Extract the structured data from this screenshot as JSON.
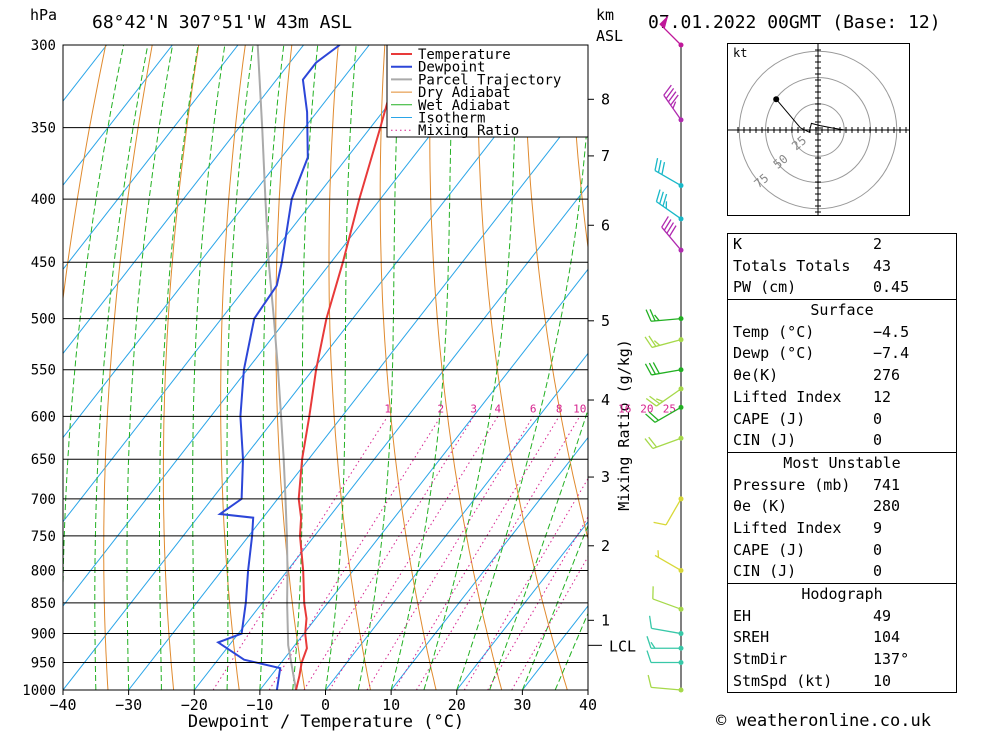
{
  "header": {
    "pressure_unit": "hPa",
    "location": "68°42'N 307°51'W 43m ASL",
    "km_unit": "km",
    "asl_unit": "ASL",
    "datetime": "07.01.2022 00GMT (Base: 12)"
  },
  "chart_data": {
    "type": "skew-t",
    "xlabel": "Dewpoint / Temperature (°C)",
    "x_ticks": [
      "−40",
      "−30",
      "−20",
      "−10",
      "0",
      "10",
      "20",
      "30",
      "40"
    ],
    "x_tick_values": [
      -40,
      -30,
      -20,
      -10,
      0,
      10,
      20,
      30,
      40
    ],
    "pressure_levels": [
      300,
      350,
      400,
      450,
      500,
      550,
      600,
      650,
      700,
      750,
      800,
      850,
      900,
      950,
      1000
    ],
    "height_km_ticks": [
      "8",
      "7",
      "6",
      "5",
      "4",
      "3",
      "2",
      "1"
    ],
    "height_km_pressures": [
      332,
      369,
      420,
      502,
      582,
      672,
      764,
      878
    ],
    "lcl_label": "LCL",
    "lcl_pressure": 920,
    "mixing_ratio_label": "Mixing Ratio (g/kg)",
    "mixing_ratio_values": [
      "1",
      "2",
      "3",
      "4",
      "6",
      "8",
      "10",
      "16",
      "20",
      "25"
    ],
    "legend": [
      "Temperature",
      "Dewpoint",
      "Parcel Trajectory",
      "Dry Adiabat",
      "Wet Adiabat",
      "Isotherm",
      "Mixing Ratio"
    ],
    "colors": {
      "temperature": "#e83a3a",
      "dewpoint": "#2c46d8",
      "parcel": "#aaaaaa",
      "dry_adiabat": "#e08a2e",
      "wet_adiabat": "#22b022",
      "isotherm": "#2aa5e8",
      "mixing_ratio": "#d6228e"
    },
    "temperature_profile": [
      {
        "p": 1000,
        "t": -4.5
      },
      {
        "p": 975,
        "t": -5.6
      },
      {
        "p": 950,
        "t": -6.9
      },
      {
        "p": 925,
        "t": -7.8
      },
      {
        "p": 900,
        "t": -9.8
      },
      {
        "p": 875,
        "t": -11.4
      },
      {
        "p": 850,
        "t": -13.6
      },
      {
        "p": 800,
        "t": -17.6
      },
      {
        "p": 750,
        "t": -22.2
      },
      {
        "p": 725,
        "t": -24.2
      },
      {
        "p": 700,
        "t": -26.8
      },
      {
        "p": 650,
        "t": -31.0
      },
      {
        "p": 600,
        "t": -35.0
      },
      {
        "p": 550,
        "t": -39.5
      },
      {
        "p": 500,
        "t": -44.0
      },
      {
        "p": 450,
        "t": -48.2
      },
      {
        "p": 400,
        "t": -53.2
      },
      {
        "p": 350,
        "t": -58.5
      },
      {
        "p": 300,
        "t": -64.8
      }
    ],
    "dewpoint_profile": [
      {
        "p": 1000,
        "t": -7.4
      },
      {
        "p": 960,
        "t": -9.5
      },
      {
        "p": 945,
        "t": -16.0
      },
      {
        "p": 915,
        "t": -22.0
      },
      {
        "p": 900,
        "t": -19.5
      },
      {
        "p": 850,
        "t": -22.5
      },
      {
        "p": 800,
        "t": -26.0
      },
      {
        "p": 750,
        "t": -29.5
      },
      {
        "p": 725,
        "t": -31.5
      },
      {
        "p": 720,
        "t": -37.0
      },
      {
        "p": 700,
        "t": -35.5
      },
      {
        "p": 650,
        "t": -40.0
      },
      {
        "p": 600,
        "t": -45.5
      },
      {
        "p": 550,
        "t": -50.5
      },
      {
        "p": 500,
        "t": -55.0
      },
      {
        "p": 470,
        "t": -55.5
      },
      {
        "p": 450,
        "t": -57.5
      },
      {
        "p": 400,
        "t": -63.5
      },
      {
        "p": 370,
        "t": -66.0
      },
      {
        "p": 340,
        "t": -71.5
      },
      {
        "p": 320,
        "t": -76.0
      },
      {
        "p": 310,
        "t": -76.0
      },
      {
        "p": 300,
        "t": -74.5
      }
    ],
    "parcel_profile": [
      {
        "p": 1000,
        "t": -4.5
      },
      {
        "p": 920,
        "t": -11.0
      },
      {
        "p": 850,
        "t": -16.2
      },
      {
        "p": 800,
        "t": -20.0
      },
      {
        "p": 750,
        "t": -24.2
      },
      {
        "p": 700,
        "t": -28.8
      },
      {
        "p": 650,
        "t": -33.8
      },
      {
        "p": 600,
        "t": -39.3
      },
      {
        "p": 550,
        "t": -45.3
      },
      {
        "p": 500,
        "t": -52.0
      },
      {
        "p": 450,
        "t": -59.5
      },
      {
        "p": 400,
        "t": -67.5
      },
      {
        "p": 350,
        "t": -76.5
      },
      {
        "p": 300,
        "t": -87.0
      }
    ],
    "wind_barbs": [
      {
        "p": 1000,
        "dir": 275,
        "spd": 10,
        "color": "#a6d94a"
      },
      {
        "p": 950,
        "dir": 270,
        "spd": 10,
        "color": "#38c8a8"
      },
      {
        "p": 925,
        "dir": 270,
        "spd": 15,
        "color": "#38c8a8"
      },
      {
        "p": 900,
        "dir": 280,
        "spd": 10,
        "color": "#38c8a8"
      },
      {
        "p": 860,
        "dir": 290,
        "spd": 10,
        "color": "#a6d94a"
      },
      {
        "p": 800,
        "dir": 300,
        "spd": 5,
        "color": "#d8d838"
      },
      {
        "p": 700,
        "dir": 210,
        "spd": 10,
        "color": "#d8d838"
      },
      {
        "p": 625,
        "dir": 250,
        "spd": 20,
        "color": "#a6d94a"
      },
      {
        "p": 590,
        "dir": 240,
        "spd": 20,
        "color": "#22b022"
      },
      {
        "p": 570,
        "dir": 235,
        "spd": 25,
        "color": "#a6d94a"
      },
      {
        "p": 550,
        "dir": 260,
        "spd": 30,
        "color": "#22b022"
      },
      {
        "p": 520,
        "dir": 255,
        "spd": 25,
        "color": "#a6d94a"
      },
      {
        "p": 500,
        "dir": 265,
        "spd": 25,
        "color": "#22b022"
      },
      {
        "p": 440,
        "dir": 320,
        "spd": 40,
        "color": "#b02ab0"
      },
      {
        "p": 415,
        "dir": 305,
        "spd": 35,
        "color": "#18b8c8"
      },
      {
        "p": 390,
        "dir": 300,
        "spd": 30,
        "color": "#18b8c8"
      },
      {
        "p": 345,
        "dir": 325,
        "spd": 45,
        "color": "#b02ab0"
      },
      {
        "p": 300,
        "dir": 315,
        "spd": 50,
        "color": "#c0189a"
      }
    ],
    "hodograph": {
      "unit_label": "kt",
      "ring_labels": [
        "25",
        "50",
        "75"
      ],
      "points": [
        {
          "u": -8,
          "v": 1
        },
        {
          "u": -4,
          "v": -1
        },
        {
          "u": -3,
          "v": 3
        },
        {
          "u": 1,
          "v": 2
        },
        {
          "u": 6,
          "v": 1
        },
        {
          "u": 12,
          "v": 0
        },
        {
          "u": -19,
          "v": 14
        }
      ]
    }
  },
  "indices": {
    "rows": [
      {
        "label": "K",
        "value": "2"
      },
      {
        "label": "Totals Totals",
        "value": "43"
      },
      {
        "label": "PW (cm)",
        "value": "0.45"
      }
    ]
  },
  "surface": {
    "title": "Surface",
    "rows": [
      {
        "label": "Temp (°C)",
        "value": "−4.5"
      },
      {
        "label": "Dewp (°C)",
        "value": "−7.4"
      },
      {
        "label": "θe(K)",
        "value": "276"
      },
      {
        "label": "Lifted Index",
        "value": "12"
      },
      {
        "label": "CAPE (J)",
        "value": "0"
      },
      {
        "label": "CIN (J)",
        "value": "0"
      }
    ]
  },
  "most_unstable": {
    "title": "Most Unstable",
    "rows": [
      {
        "label": "Pressure (mb)",
        "value": "741"
      },
      {
        "label": "θe (K)",
        "value": "280"
      },
      {
        "label": "Lifted Index",
        "value": "9"
      },
      {
        "label": "CAPE (J)",
        "value": "0"
      },
      {
        "label": "CIN (J)",
        "value": "0"
      }
    ]
  },
  "hodograph_table": {
    "title": "Hodograph",
    "rows": [
      {
        "label": "EH",
        "value": "49"
      },
      {
        "label": "SREH",
        "value": "104"
      },
      {
        "label": "StmDir",
        "value": "137°"
      },
      {
        "label": "StmSpd (kt)",
        "value": "10"
      }
    ]
  },
  "footer": {
    "credit": "© weatheronline.co.uk"
  }
}
